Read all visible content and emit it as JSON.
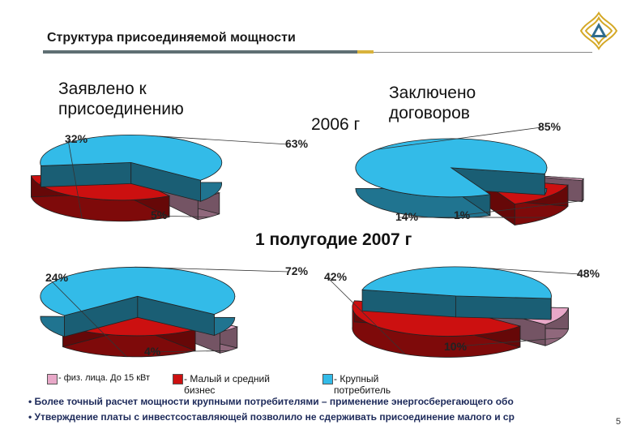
{
  "slide": {
    "title": "Структура присоединяемой мощности",
    "heading_left": "Заявлено к присоединению",
    "heading_right": "Заключено договоров",
    "year_2006": "2006 г",
    "period_2007": "1 полугодие 2007 г",
    "page_number": "5",
    "bullets": [
      "• Более точный расчет мощности крупными потребителями – применение энергосберегающего обо",
      "• Утверждение платы с инвестсоставляющей позволило не сдерживать присоединение малого и ср"
    ],
    "legend": [
      {
        "label": "- физ. лица. До 15 кВт",
        "color": "#e8a8c8"
      },
      {
        "label": "- Малый и средний бизнес",
        "color": "#cc1010"
      },
      {
        "label": "- Крупный потребитель",
        "color": "#33bbe8"
      }
    ]
  },
  "colors": {
    "physical": "#e8a8c8",
    "small_business": "#cc1010",
    "large": "#33bbe8"
  },
  "chart_data": [
    {
      "type": "pie",
      "group": "2006 г",
      "title": "Заявлено к присоединению",
      "categories": [
        "физ. лица. До 15 кВт",
        "Малый и средний бизнес",
        "Крупный потребитель"
      ],
      "values": [
        5,
        32,
        63
      ],
      "labels": [
        "5%",
        "32%",
        "63%"
      ]
    },
    {
      "type": "pie",
      "group": "2006 г",
      "title": "Заключено договоров",
      "categories": [
        "физ. лица. До 15 кВт",
        "Малый и средний бизнес",
        "Крупный потребитель"
      ],
      "values": [
        1,
        14,
        85
      ],
      "labels": [
        "1%",
        "14%",
        "85%"
      ]
    },
    {
      "type": "pie",
      "group": "1 полугодие 2007 г",
      "title": "Заявлено к присоединению",
      "categories": [
        "физ. лица. До 15 кВт",
        "Малый и средний бизнес",
        "Крупный потребитель"
      ],
      "values": [
        4,
        24,
        72
      ],
      "labels": [
        "4%",
        "24%",
        "72%"
      ]
    },
    {
      "type": "pie",
      "group": "1 полугодие 2007 г",
      "title": "Заключено договоров",
      "categories": [
        "физ. лица. До 15 кВт",
        "Малый и средний бизнес",
        "Крупный потребитель"
      ],
      "values": [
        10,
        42,
        48
      ],
      "labels": [
        "10%",
        "42%",
        "48%"
      ]
    }
  ]
}
